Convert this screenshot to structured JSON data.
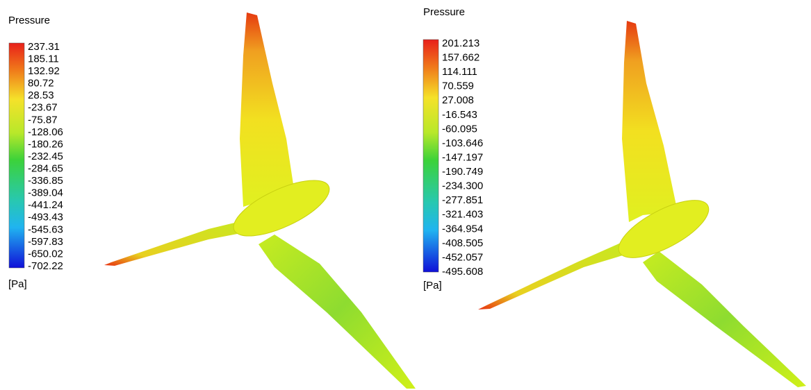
{
  "panels": [
    {
      "title": "Pressure",
      "legend": [
        "237.31",
        "185.11",
        "132.92",
        "80.72",
        "28.53",
        "-23.67",
        "-75.87",
        "-128.06",
        "-180.26",
        "-232.45",
        "-284.65",
        "-336.85",
        "-389.04",
        "-441.24",
        "-493.43",
        "-545.63",
        "-597.83",
        "-650.02",
        "-702.22"
      ],
      "unit": "[Pa]"
    },
    {
      "title": "Pressure",
      "legend": [
        "201.213",
        "157.662",
        "114.111",
        "70.559",
        "27.008",
        "-16.543",
        "-60.095",
        "-103.646",
        "-147.197",
        "-190.749",
        "-234.300",
        "-277.851",
        "-321.403",
        "-364.954",
        "-408.505",
        "-452.057",
        "-495.608"
      ],
      "unit": "[Pa]"
    }
  ]
}
